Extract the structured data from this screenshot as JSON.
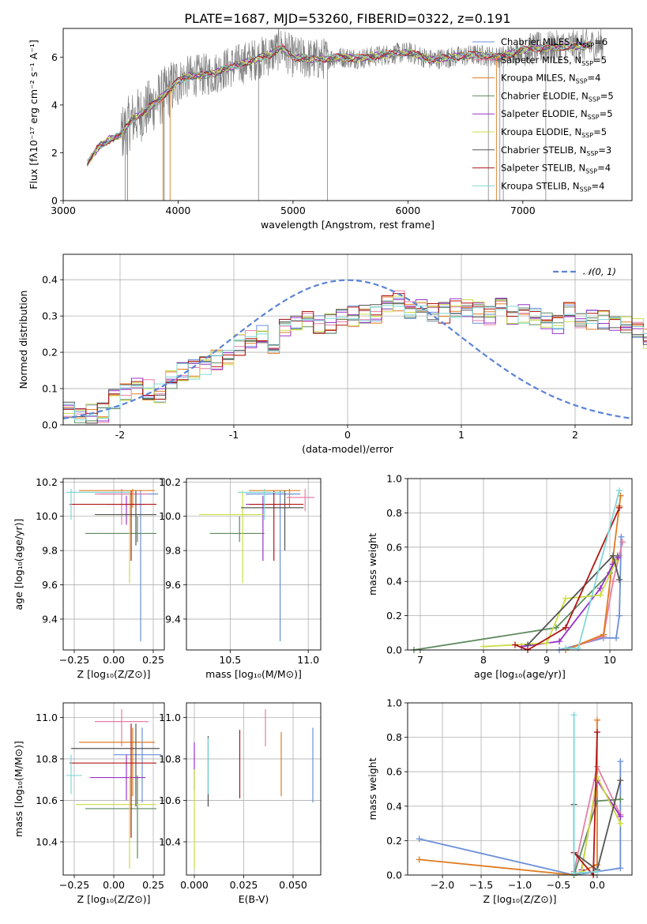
{
  "title": "PLATE=1687, MJD=53260, FIBERID=0322, z=0.191",
  "colors": [
    "#6a8fd8",
    "#e57fa8",
    "#e07b20",
    "#5e8a5e",
    "#9933c8",
    "#ccdd44",
    "#555555",
    "#b01515",
    "#7fd8d8"
  ],
  "chart_data": [
    {
      "type": "line",
      "panel": "spectrum",
      "xlabel": "wavelength [Angstrom, rest frame]",
      "ylabel": "Flux [fλ10⁻¹⁷ erg cm⁻² s⁻¹ A⁻¹]",
      "xlim": [
        3000,
        7950
      ],
      "ylim": [
        0,
        7.2
      ],
      "xticks": [
        3000,
        4000,
        5000,
        6000,
        7000
      ],
      "yticks": [
        0,
        2,
        4,
        6
      ],
      "continuum": [
        [
          3210,
          1.55
        ],
        [
          3300,
          2.2
        ],
        [
          3400,
          2.55
        ],
        [
          3500,
          2.75
        ],
        [
          3600,
          3.4
        ],
        [
          3700,
          3.7
        ],
        [
          3800,
          4.1
        ],
        [
          3900,
          4.5
        ],
        [
          4000,
          5.0
        ],
        [
          4100,
          5.2
        ],
        [
          4200,
          5.25
        ],
        [
          4300,
          5.3
        ],
        [
          4400,
          5.5
        ],
        [
          4600,
          5.8
        ],
        [
          4800,
          6.1
        ],
        [
          4900,
          6.4
        ],
        [
          5000,
          6.0
        ],
        [
          5200,
          5.9
        ],
        [
          5400,
          6.0
        ],
        [
          5600,
          5.95
        ],
        [
          5800,
          6.1
        ],
        [
          6000,
          6.2
        ],
        [
          6200,
          5.9
        ],
        [
          6400,
          6.0
        ],
        [
          6600,
          6.1
        ],
        [
          6800,
          6.0
        ],
        [
          7000,
          6.3
        ],
        [
          7200,
          6.4
        ],
        [
          7600,
          6.5
        ]
      ],
      "legend": [
        {
          "label": "Chabrier MILES, N",
          "sub": "SSP",
          "val": "=6"
        },
        {
          "label": "Salpeter MILES, N",
          "sub": "SSP",
          "val": "=5"
        },
        {
          "label": "Kroupa MILES, N",
          "sub": "SSP",
          "val": "=4"
        },
        {
          "label": "Chabrier ELODIE, N",
          "sub": "SSP",
          "val": "=5"
        },
        {
          "label": "Salpeter ELODIE, N",
          "sub": "SSP",
          "val": "=5"
        },
        {
          "label": "Kroupa ELODIE, N",
          "sub": "SSP",
          "val": "=5"
        },
        {
          "label": "Chabrier STELIB, N",
          "sub": "SSP",
          "val": "=3"
        },
        {
          "label": "Salpeter STELIB, N",
          "sub": "SSP",
          "val": "=4"
        },
        {
          "label": "Kroupa STELIB, N",
          "sub": "SSP",
          "val": "=4"
        }
      ]
    },
    {
      "type": "histogram",
      "panel": "residuals",
      "xlabel": "(data-model)/error",
      "ylabel": "Normed distribution",
      "xlim": [
        -2.5,
        2.5
      ],
      "ylim": [
        0,
        0.47
      ],
      "xticks": [
        -2,
        -1,
        0,
        1,
        2
      ],
      "yticks": [
        0.0,
        0.1,
        0.2,
        0.3,
        0.4
      ],
      "bin_width": 0.1,
      "bin_start": -2.5,
      "envelope": [
        0.04,
        0.035,
        0.03,
        0.035,
        0.07,
        0.09,
        0.1,
        0.095,
        0.09,
        0.13,
        0.145,
        0.15,
        0.16,
        0.18,
        0.19,
        0.22,
        0.24,
        0.25,
        0.2,
        0.27,
        0.27,
        0.3,
        0.28,
        0.28,
        0.3,
        0.3,
        0.3,
        0.31,
        0.33,
        0.34,
        0.32,
        0.33,
        0.31,
        0.31,
        0.32,
        0.32,
        0.31,
        0.3,
        0.32,
        0.3,
        0.31,
        0.3,
        0.28,
        0.28,
        0.31,
        0.29,
        0.29,
        0.29,
        0.27,
        0.28,
        0.27,
        0.24,
        0.24,
        0.21,
        0.2,
        0.19,
        0.16,
        0.15,
        0.15,
        0.13,
        0.12,
        0.11,
        0.1,
        0.09,
        0.09,
        0.08,
        0.08,
        0.07,
        0.06,
        0.06
      ],
      "gaussian_label": "𝒩(0, 1)"
    },
    {
      "type": "scatter",
      "panel": "Z-age",
      "xlabel": "Z [log₁₀(Z/Z⊙)]",
      "ylabel": "age  [log₁₀(age/yr)]",
      "xlim": [
        -0.32,
        0.32
      ],
      "ylim": [
        9.22,
        10.22
      ],
      "xticks": [
        -0.25,
        0.0,
        0.25
      ],
      "xticklabels": [
        "−0.25",
        "0.00",
        "0.25"
      ],
      "yticks": [
        9.4,
        9.6,
        9.8,
        10.0,
        10.2
      ],
      "points": [
        {
          "c": 0,
          "x": 0.17,
          "y": 10.13,
          "xe": [
            -0.1,
            0.28
          ],
          "ye": [
            9.27,
            10.15
          ]
        },
        {
          "c": 1,
          "x": 0.05,
          "y": 10.13,
          "xe": [
            -0.12,
            0.22
          ],
          "ye": [
            9.95,
            10.16
          ]
        },
        {
          "c": 2,
          "x": 0.12,
          "y": 10.15,
          "xe": [
            -0.22,
            0.26
          ],
          "ye": [
            10.05,
            10.16
          ]
        },
        {
          "c": 3,
          "x": 0.15,
          "y": 9.9,
          "xe": [
            -0.18,
            0.27
          ],
          "ye": [
            9.85,
            10.0
          ]
        },
        {
          "c": 4,
          "x": 0.08,
          "y": 10.07,
          "xe": [
            -0.05,
            0.2
          ],
          "ye": [
            9.95,
            10.12
          ]
        },
        {
          "c": 5,
          "x": 0.1,
          "y": 10.01,
          "xe": [
            -0.1,
            0.25
          ],
          "ye": [
            9.61,
            10.15
          ]
        },
        {
          "c": 6,
          "x": 0.14,
          "y": 10.01,
          "xe": [
            -0.12,
            0.27
          ],
          "ye": [
            9.83,
            10.15
          ]
        },
        {
          "c": 7,
          "x": 0.11,
          "y": 10.07,
          "xe": [
            -0.28,
            0.27
          ],
          "ye": [
            9.74,
            10.15
          ]
        },
        {
          "c": 8,
          "x": -0.27,
          "y": 10.14,
          "xe": [
            -0.3,
            0.1
          ],
          "ye": [
            9.98,
            10.16
          ]
        }
      ]
    },
    {
      "type": "scatter",
      "panel": "mass-age",
      "xlabel": "mass [log₁₀(M/M⊙)]",
      "ylabel": "",
      "xlim": [
        10.22,
        11.08
      ],
      "ylim": [
        9.22,
        10.22
      ],
      "xticks": [
        10.5,
        11.0
      ],
      "xticklabels": [
        "10.5",
        "11.0"
      ],
      "yticks": [
        9.4,
        9.6,
        9.8,
        10.0,
        10.2
      ],
      "points": [
        {
          "c": 0,
          "x": 10.82,
          "y": 10.13,
          "xe": [
            10.6,
            10.95
          ],
          "ye": [
            9.27,
            10.15
          ]
        },
        {
          "c": 1,
          "x": 10.98,
          "y": 10.11,
          "xe": [
            10.86,
            11.04
          ],
          "ye": [
            10.03,
            10.16
          ]
        },
        {
          "c": 2,
          "x": 10.88,
          "y": 10.15,
          "xe": [
            10.62,
            10.95
          ],
          "ye": [
            10.05,
            10.16
          ]
        },
        {
          "c": 3,
          "x": 10.56,
          "y": 9.9,
          "xe": [
            10.37,
            10.72
          ],
          "ye": [
            9.85,
            10.0
          ]
        },
        {
          "c": 4,
          "x": 10.71,
          "y": 10.07,
          "xe": [
            10.6,
            10.82
          ],
          "ye": [
            9.74,
            10.12
          ]
        },
        {
          "c": 5,
          "x": 10.58,
          "y": 10.01,
          "xe": [
            10.3,
            10.72
          ],
          "ye": [
            9.61,
            10.15
          ]
        },
        {
          "c": 6,
          "x": 10.85,
          "y": 10.05,
          "xe": [
            10.57,
            10.97
          ],
          "ye": [
            9.8,
            10.15
          ]
        },
        {
          "c": 7,
          "x": 10.78,
          "y": 10.07,
          "xe": [
            10.62,
            10.97
          ],
          "ye": [
            9.74,
            10.15
          ]
        },
        {
          "c": 8,
          "x": 10.72,
          "y": 10.14,
          "xe": [
            10.55,
            10.85
          ],
          "ye": [
            9.98,
            10.16
          ]
        }
      ]
    },
    {
      "type": "line",
      "panel": "age-weight",
      "xlabel": "age  [log₁₀(age/yr)]",
      "ylabel": "mass weight",
      "xlim": [
        6.8,
        10.35
      ],
      "ylim": [
        0,
        1.0
      ],
      "xticks": [
        7,
        8,
        9,
        10
      ],
      "yticks": [
        0.0,
        0.2,
        0.4,
        0.6,
        0.8,
        1.0
      ],
      "series": [
        {
          "c": 0,
          "x": [
            9.2,
            9.9,
            10.1,
            10.15,
            10.18
          ],
          "y": [
            0.0,
            0.07,
            0.07,
            0.2,
            0.66
          ]
        },
        {
          "c": 1,
          "x": [
            9.3,
            9.9,
            10.05,
            10.15,
            10.2
          ],
          "y": [
            0.0,
            0.08,
            0.4,
            0.55,
            0.63
          ]
        },
        {
          "c": 2,
          "x": [
            9.3,
            9.9,
            10.15,
            10.17
          ],
          "y": [
            0.0,
            0.09,
            0.84,
            0.9
          ]
        },
        {
          "c": 3,
          "x": [
            6.9,
            9.15,
            10.0,
            10.12
          ],
          "y": [
            0.0,
            0.13,
            0.45,
            0.55
          ]
        },
        {
          "c": 4,
          "x": [
            8.6,
            9.2,
            9.85,
            10.05,
            10.13
          ],
          "y": [
            0.02,
            0.05,
            0.36,
            0.5,
            0.54
          ]
        },
        {
          "c": 5,
          "x": [
            8.0,
            9.0,
            9.3,
            9.85,
            10.1
          ],
          "y": [
            0.02,
            0.04,
            0.3,
            0.32,
            0.52
          ]
        },
        {
          "c": 6,
          "x": [
            8.7,
            10.05,
            10.15
          ],
          "y": [
            0.03,
            0.55,
            0.41
          ]
        },
        {
          "c": 7,
          "x": [
            8.5,
            8.7,
            9.3,
            10.15
          ],
          "y": [
            0.03,
            0.0,
            0.13,
            0.83
          ]
        },
        {
          "c": 8,
          "x": [
            9.3,
            9.5,
            10.15
          ],
          "y": [
            0.01,
            0.01,
            0.93
          ]
        }
      ]
    },
    {
      "type": "scatter",
      "panel": "Z-mass",
      "xlabel": "Z [log₁₀(Z/Z⊙)]",
      "ylabel": "mass [log₁₀(M/M⊙)]",
      "xlim": [
        -0.32,
        0.32
      ],
      "ylim": [
        10.24,
        11.07
      ],
      "xticks": [
        -0.25,
        0.0,
        0.25
      ],
      "xticklabels": [
        "−0.25",
        "0.00",
        "0.25"
      ],
      "yticks": [
        10.4,
        10.6,
        10.8,
        11.0
      ],
      "points": [
        {
          "c": 0,
          "x": 0.18,
          "y": 10.82,
          "xe": [
            0.0,
            0.3
          ],
          "ye": [
            10.59,
            10.95
          ]
        },
        {
          "c": 1,
          "x": 0.05,
          "y": 10.98,
          "xe": [
            -0.12,
            0.22
          ],
          "ye": [
            10.86,
            11.04
          ]
        },
        {
          "c": 2,
          "x": 0.12,
          "y": 10.88,
          "xe": [
            -0.22,
            0.26
          ],
          "ye": [
            10.62,
            10.95
          ]
        },
        {
          "c": 3,
          "x": 0.15,
          "y": 10.56,
          "xe": [
            -0.18,
            0.27
          ],
          "ye": [
            10.32,
            10.72
          ]
        },
        {
          "c": 4,
          "x": 0.08,
          "y": 10.71,
          "xe": [
            -0.15,
            0.2
          ],
          "ye": [
            10.6,
            10.82
          ]
        },
        {
          "c": 5,
          "x": 0.1,
          "y": 10.58,
          "xe": [
            -0.24,
            0.27
          ],
          "ye": [
            10.27,
            10.72
          ]
        },
        {
          "c": 6,
          "x": 0.14,
          "y": 10.85,
          "xe": [
            -0.27,
            0.29
          ],
          "ye": [
            10.57,
            10.97
          ]
        },
        {
          "c": 7,
          "x": 0.11,
          "y": 10.78,
          "xe": [
            -0.28,
            0.27
          ],
          "ye": [
            10.42,
            10.97
          ]
        },
        {
          "c": 8,
          "x": -0.27,
          "y": 10.72,
          "xe": [
            -0.3,
            -0.2
          ],
          "ye": [
            10.63,
            10.82
          ]
        }
      ]
    },
    {
      "type": "scatter",
      "panel": "EBV-mass",
      "xlabel": "E(B-V)",
      "ylabel": "",
      "xlim": [
        -0.004,
        0.064
      ],
      "ylim": [
        10.24,
        11.07
      ],
      "xticks": [
        0.0,
        0.025,
        0.05
      ],
      "xticklabels": [
        "0.000",
        "0.025",
        "0.050"
      ],
      "yticks": [
        10.4,
        10.6,
        10.8,
        11.0
      ],
      "points": [
        {
          "c": 0,
          "x": 0.06,
          "y": 10.82,
          "ye": [
            10.59,
            10.95
          ]
        },
        {
          "c": 1,
          "x": 0.036,
          "y": 10.98,
          "ye": [
            10.86,
            11.04
          ]
        },
        {
          "c": 2,
          "x": 0.044,
          "y": 10.88,
          "ye": [
            10.62,
            10.93
          ]
        },
        {
          "c": 3,
          "x": 0.007,
          "y": 10.72,
          "ye": [
            10.57,
            10.88
          ]
        },
        {
          "c": 4,
          "x": 0.0,
          "y": 10.78,
          "ye": [
            10.65,
            10.88
          ]
        },
        {
          "c": 5,
          "x": 0.0,
          "y": 10.55,
          "ye": [
            10.27,
            10.75
          ]
        },
        {
          "c": 6,
          "x": 0.007,
          "y": 10.85,
          "ye": [
            10.57,
            10.91
          ]
        },
        {
          "c": 7,
          "x": 0.023,
          "y": 10.78,
          "ye": [
            10.61,
            10.94
          ]
        },
        {
          "c": 8,
          "x": 0.007,
          "y": 10.72,
          "ye": [
            10.63,
            10.9
          ]
        }
      ]
    },
    {
      "type": "line",
      "panel": "Z-weight",
      "xlabel": "Z [log₁₀(Z/Z⊙)]",
      "ylabel": "mass weight",
      "xlim": [
        -2.45,
        0.45
      ],
      "ylim": [
        0,
        1.0
      ],
      "xticks": [
        -2.0,
        -1.5,
        -1.0,
        -0.5,
        0.0
      ],
      "xticklabels": [
        "−2.0",
        "−1.5",
        "−1.0",
        "−0.5",
        "0.0"
      ],
      "yticks": [
        0.0,
        0.2,
        0.4,
        0.6,
        0.8,
        1.0
      ],
      "series": [
        {
          "c": 0,
          "x": [
            -2.3,
            -0.3,
            0.3,
            0.3
          ],
          "y": [
            0.21,
            0.0,
            0.04,
            0.66
          ]
        },
        {
          "c": 1,
          "x": [
            -0.3,
            0.0,
            0.3
          ],
          "y": [
            0.02,
            0.63,
            0.35
          ]
        },
        {
          "c": 2,
          "x": [
            -2.3,
            -0.3,
            0.0,
            0.0
          ],
          "y": [
            0.09,
            0.0,
            0.06,
            0.9
          ]
        },
        {
          "c": 3,
          "x": [
            -0.3,
            0.0,
            0.3
          ],
          "y": [
            0.0,
            0.43,
            0.44
          ]
        },
        {
          "c": 4,
          "x": [
            -0.2,
            0.0,
            0.3
          ],
          "y": [
            0.03,
            0.55,
            0.34
          ]
        },
        {
          "c": 5,
          "x": [
            -0.2,
            0.0,
            0.3
          ],
          "y": [
            0.02,
            0.57,
            0.3
          ]
        },
        {
          "c": 6,
          "x": [
            -0.3,
            -0.3,
            0.0,
            0.3
          ],
          "y": [
            0.41,
            0.13,
            0.03,
            0.55
          ]
        },
        {
          "c": 7,
          "x": [
            -0.3,
            -0.05,
            0.0
          ],
          "y": [
            0.13,
            0.0,
            0.83
          ]
        },
        {
          "c": 8,
          "x": [
            -0.3,
            -0.3,
            0.0
          ],
          "y": [
            0.93,
            0.01,
            0.02
          ]
        }
      ]
    }
  ]
}
